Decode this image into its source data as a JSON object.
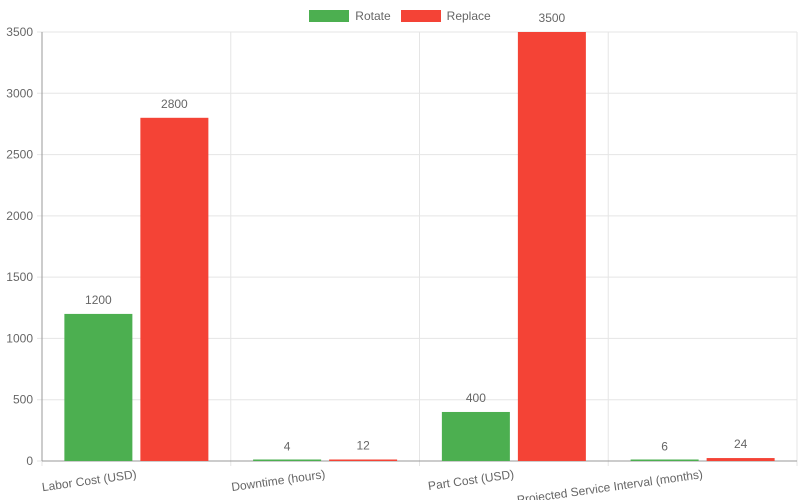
{
  "colors": {
    "rotate": "#4caf50",
    "replace": "#f44336",
    "grid": "#e5e5e5",
    "axis": "#999999",
    "text": "#666666"
  },
  "chart_data": {
    "type": "bar",
    "categories": [
      "Labor Cost (USD)",
      "Downtime (hours)",
      "Part Cost (USD)",
      "Projected Service Interval (months)"
    ],
    "series": [
      {
        "name": "Rotate",
        "values": [
          1200,
          4,
          400,
          6
        ]
      },
      {
        "name": "Replace",
        "values": [
          2800,
          12,
          3500,
          24
        ]
      }
    ],
    "title": "",
    "xlabel": "",
    "ylabel": "",
    "ylim": [
      0,
      3500
    ],
    "yticks": [
      0,
      500,
      1000,
      1500,
      2000,
      2500,
      3000,
      3500
    ],
    "grid": true,
    "legend_position": "top"
  }
}
